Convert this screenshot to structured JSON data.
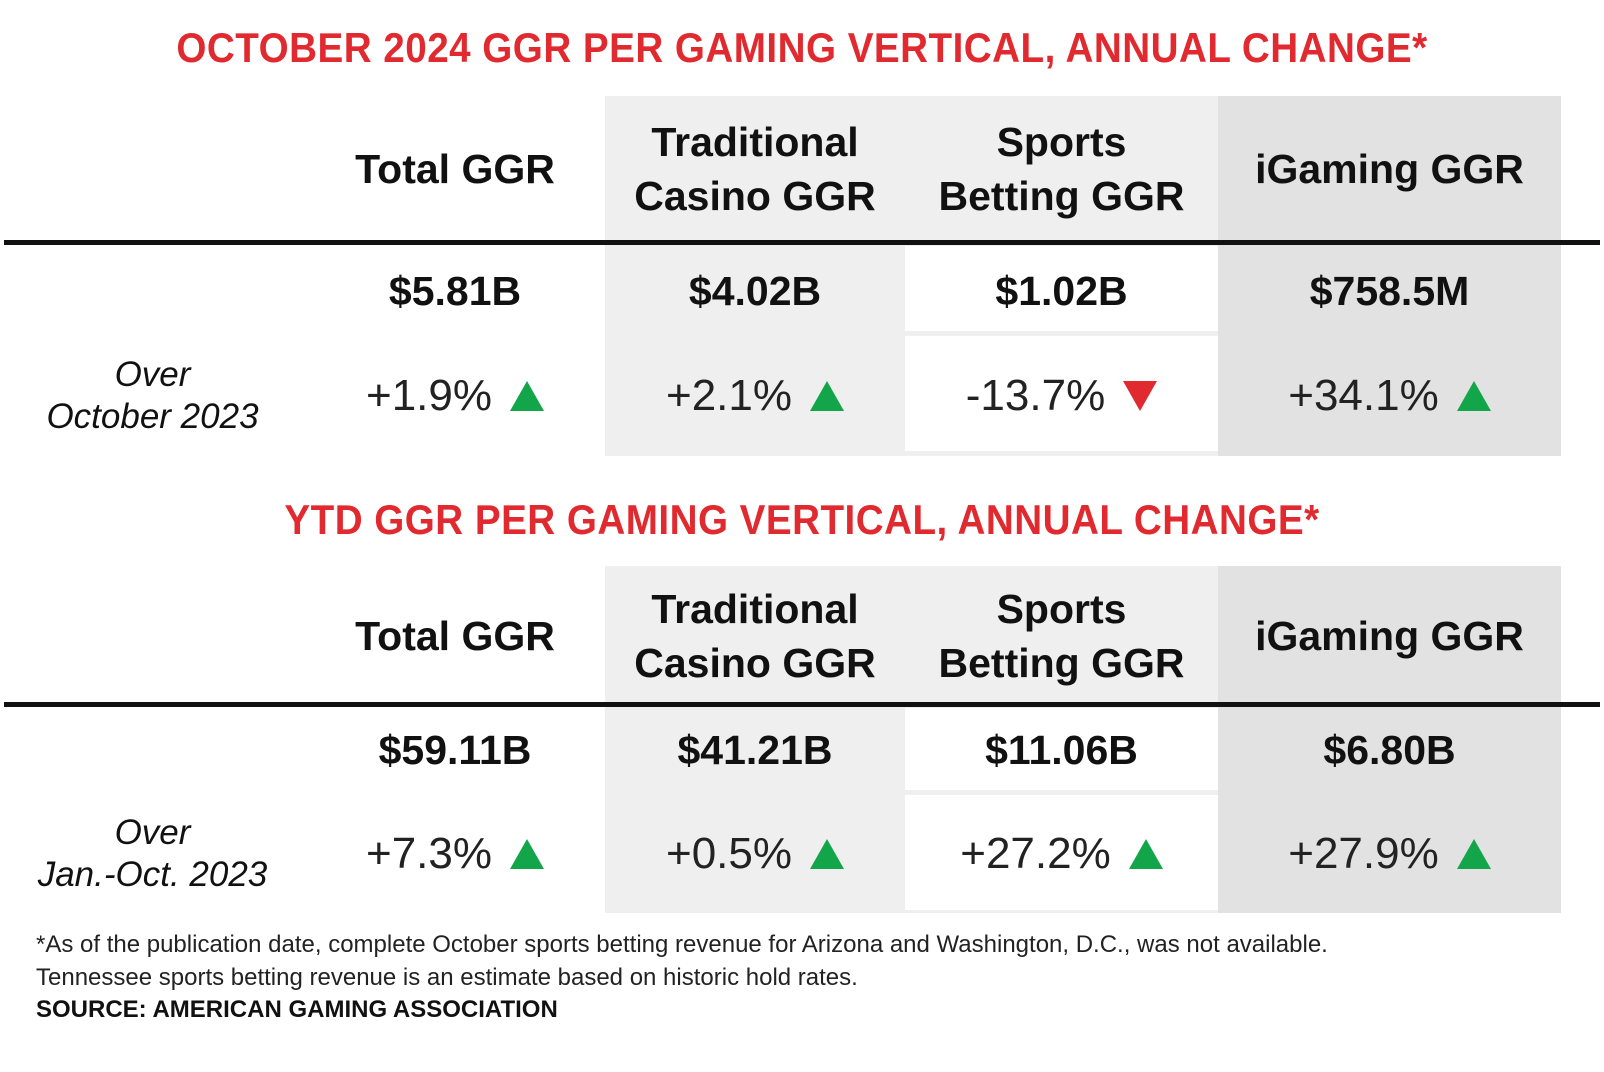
{
  "colors": {
    "title_red": "#e02a2f",
    "up_green": "#13a54a",
    "down_red": "#e02a2f"
  },
  "columns": [
    "Total GGR",
    "Traditional Casino GGR",
    "Sports Betting GGR",
    "iGaming GGR"
  ],
  "monthly": {
    "title": "OCTOBER 2024 GGR PER GAMING VERTICAL, ANNUAL CHANGE*",
    "headers": [
      "Total GGR",
      "Traditional",
      "Casino GGR",
      "Sports",
      "Betting GGR",
      "iGaming GGR"
    ],
    "row_label_line1": "Over",
    "row_label_line2": "October 2023",
    "values": [
      "$5.81B",
      "$4.02B",
      "$1.02B",
      "$758.5M"
    ],
    "changes": [
      "+1.9%",
      "+2.1%",
      "-13.7%",
      "+34.1%"
    ],
    "directions": [
      "up",
      "up",
      "down",
      "up"
    ]
  },
  "ytd": {
    "title": "YTD GGR PER GAMING VERTICAL, ANNUAL CHANGE*",
    "headers": [
      "Total GGR",
      "Traditional",
      "Casino GGR",
      "Sports",
      "Betting GGR",
      "iGaming GGR"
    ],
    "row_label_line1": "Over",
    "row_label_line2": "Jan.-Oct. 2023",
    "values": [
      "$59.11B",
      "$41.21B",
      "$11.06B",
      "$6.80B"
    ],
    "changes": [
      "+7.3%",
      "+0.5%",
      "+27.2%",
      "+27.9%"
    ],
    "directions": [
      "up",
      "up",
      "up",
      "up"
    ]
  },
  "footnote_line1": "*As of the publication date, complete October sports betting revenue for Arizona and Washington, D.C., was not available.",
  "footnote_line2": "Tennessee sports betting revenue is an estimate based on historic hold rates.",
  "source": "SOURCE: AMERICAN GAMING ASSOCIATION"
}
